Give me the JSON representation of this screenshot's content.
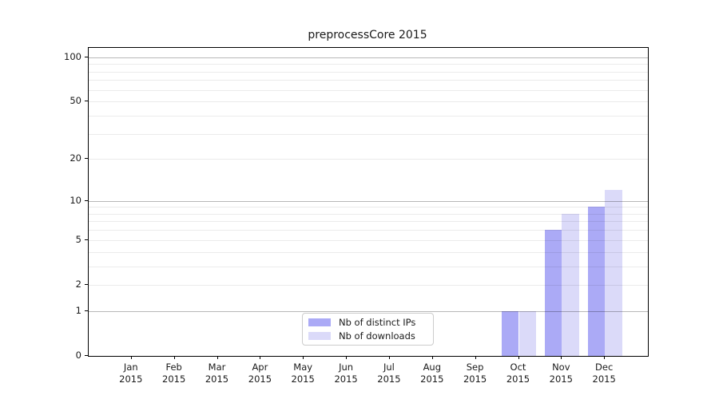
{
  "title": "preprocessCore 2015",
  "chart_data": {
    "type": "bar",
    "title": "preprocessCore 2015",
    "categories": [
      "Jan",
      "Feb",
      "Mar",
      "Apr",
      "May",
      "Jun",
      "Jul",
      "Aug",
      "Sep",
      "Oct",
      "Nov",
      "Dec"
    ],
    "category_year": "2015",
    "series": [
      {
        "name": "Nb of distinct IPs",
        "color": "#abaaf6",
        "values": [
          0,
          0,
          0,
          0,
          0,
          0,
          0,
          0,
          0,
          1,
          6,
          9
        ]
      },
      {
        "name": "Nb of downloads",
        "color": "#dbdaf9",
        "values": [
          0,
          0,
          0,
          0,
          0,
          0,
          0,
          0,
          0,
          1,
          8,
          12
        ]
      }
    ],
    "y_axis": {
      "scale": "log1p",
      "ylim": [
        0,
        115.9
      ],
      "tick_values": [
        0,
        1,
        2,
        5,
        10,
        20,
        50,
        100
      ],
      "tick_labels": [
        "0",
        "1",
        "2",
        "5",
        "10",
        "20",
        "50",
        "100"
      ],
      "major_gridlines": [
        1,
        10,
        100
      ],
      "minor_gridlines": [
        2,
        3,
        4,
        5,
        6,
        7,
        8,
        9,
        20,
        30,
        40,
        50,
        60,
        70,
        80,
        90
      ]
    },
    "grid": true,
    "legend_position": "lower center"
  },
  "colors": {
    "background": "#ffffff",
    "spine": "#000000",
    "text": "#1a1a1a",
    "grid_major": "rgba(0,0,0,0.28)",
    "grid_minor": "rgba(0,0,0,0.08)",
    "legend_border": "#cccccc",
    "bar_distinct_ips": "#abaaf6",
    "bar_downloads": "#dbdaf9"
  }
}
